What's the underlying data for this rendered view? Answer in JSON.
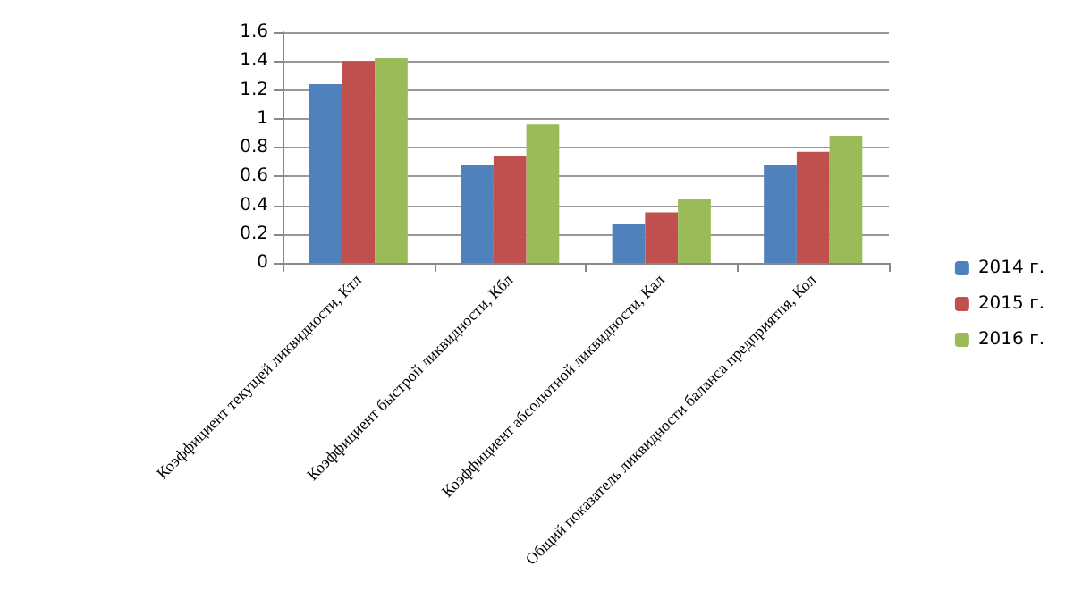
{
  "chart_data": {
    "type": "bar",
    "categories": [
      "Коэффициент текущей ликвидности, Ктл",
      "Коэффициент быстрой ликвидности, Кбл",
      "Коэффициент абсолютной ликвидности, Кал",
      "Общий показатель ликвидности баланса предприятия, Кол"
    ],
    "series": [
      {
        "name": "2014 г.",
        "color": "#4f81bd",
        "values": [
          1.24,
          0.68,
          0.27,
          0.68
        ]
      },
      {
        "name": "2015 г.",
        "color": "#c0504d",
        "values": [
          1.4,
          0.74,
          0.35,
          0.77
        ]
      },
      {
        "name": "2016 г.",
        "color": "#9bbb59",
        "values": [
          1.42,
          0.96,
          0.44,
          0.88
        ]
      }
    ],
    "ylim": [
      0,
      1.6
    ],
    "yticks": [
      0,
      0.2,
      0.4,
      0.6,
      0.8,
      1,
      1.2,
      1.4,
      1.6
    ],
    "grid": "y",
    "legend": "right"
  }
}
